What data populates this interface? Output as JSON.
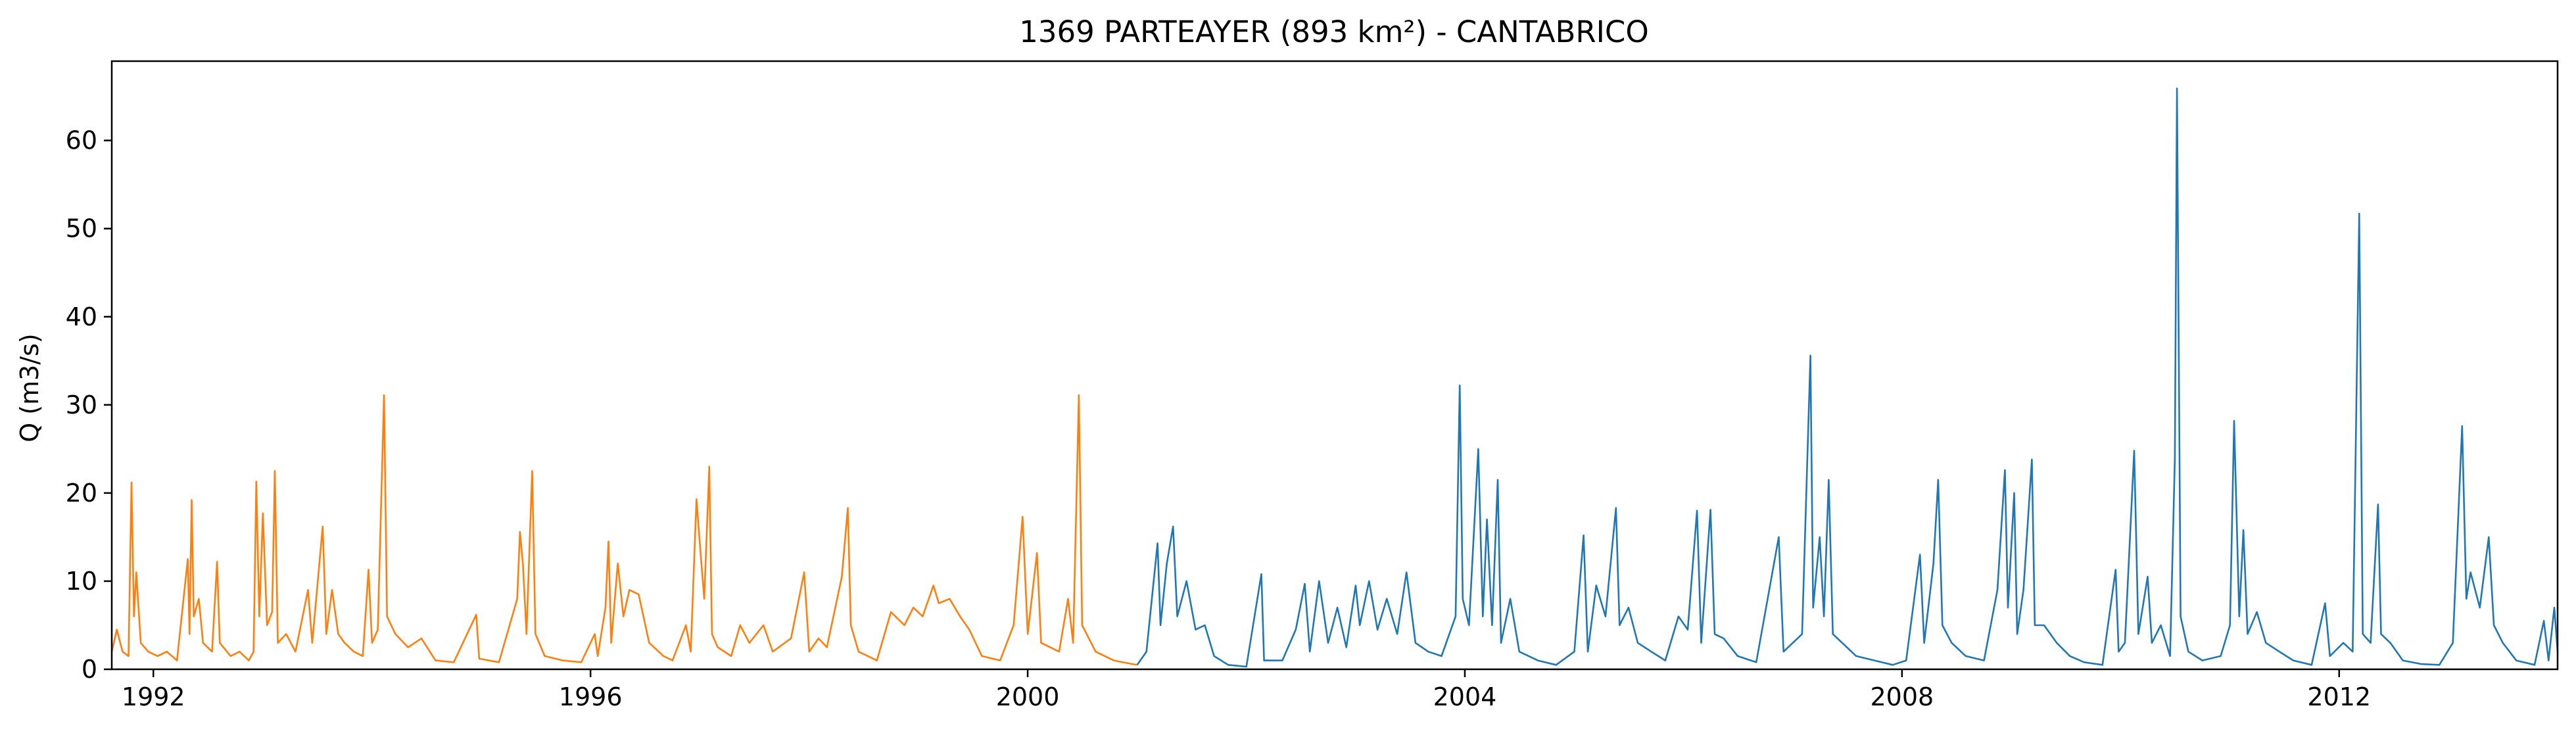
{
  "chart_data": {
    "type": "line",
    "title": "1369 PARTEAYER (893 km²) - CANTABRICO",
    "xlabel": "",
    "ylabel": "Q (m3/s)",
    "xlim": [
      "1991-08-15",
      "2013-12-31"
    ],
    "ylim": [
      0,
      69
    ],
    "x_ticks": [
      {
        "value": "1992-01-01",
        "label": "1992"
      },
      {
        "value": "1996-01-01",
        "label": "1996"
      },
      {
        "value": "2000-01-01",
        "label": "2000"
      },
      {
        "value": "2004-01-01",
        "label": "2004"
      },
      {
        "value": "2008-01-01",
        "label": "2008"
      },
      {
        "value": "2012-01-01",
        "label": "2012"
      }
    ],
    "y_ticks": [
      0,
      10,
      20,
      30,
      40,
      50,
      60
    ],
    "grid": false,
    "legend": "none",
    "series": [
      {
        "color": "#ff7f0e",
        "points": [
          [
            "1991-08-15",
            2.0
          ],
          [
            "1991-09-01",
            4.5
          ],
          [
            "1991-09-20",
            2.0
          ],
          [
            "1991-10-10",
            1.5
          ],
          [
            "1991-10-20",
            21.2
          ],
          [
            "1991-10-28",
            6.0
          ],
          [
            "1991-11-05",
            11.0
          ],
          [
            "1991-11-20",
            3.0
          ],
          [
            "1991-12-15",
            2.0
          ],
          [
            "1992-01-15",
            1.5
          ],
          [
            "1992-02-15",
            2.0
          ],
          [
            "1992-03-20",
            1.0
          ],
          [
            "1992-04-25",
            12.5
          ],
          [
            "1992-05-01",
            4.0
          ],
          [
            "1992-05-08",
            19.2
          ],
          [
            "1992-05-15",
            6.0
          ],
          [
            "1992-06-01",
            8.0
          ],
          [
            "1992-06-15",
            3.0
          ],
          [
            "1992-07-15",
            2.0
          ],
          [
            "1992-08-01",
            12.2
          ],
          [
            "1992-08-10",
            3.0
          ],
          [
            "1992-09-15",
            1.5
          ],
          [
            "1992-10-15",
            2.0
          ],
          [
            "1992-11-15",
            1.0
          ],
          [
            "1992-12-01",
            2.0
          ],
          [
            "1992-12-10",
            21.3
          ],
          [
            "1992-12-20",
            6.0
          ],
          [
            "1993-01-01",
            17.7
          ],
          [
            "1993-01-15",
            5.0
          ],
          [
            "1993-02-01",
            6.5
          ],
          [
            "1993-02-10",
            22.5
          ],
          [
            "1993-02-20",
            3.0
          ],
          [
            "1993-03-20",
            4.0
          ],
          [
            "1993-04-20",
            2.0
          ],
          [
            "1993-06-01",
            9.0
          ],
          [
            "1993-06-15",
            3.0
          ],
          [
            "1993-07-20",
            16.2
          ],
          [
            "1993-08-01",
            4.0
          ],
          [
            "1993-08-20",
            9.0
          ],
          [
            "1993-09-10",
            4.0
          ],
          [
            "1993-10-01",
            3.0
          ],
          [
            "1993-11-01",
            2.0
          ],
          [
            "1993-12-01",
            1.5
          ],
          [
            "1993-12-20",
            11.3
          ],
          [
            "1994-01-01",
            3.0
          ],
          [
            "1994-01-20",
            4.5
          ],
          [
            "1994-02-10",
            31.1
          ],
          [
            "1994-02-20",
            6.0
          ],
          [
            "1994-03-20",
            4.0
          ],
          [
            "1994-05-01",
            2.5
          ],
          [
            "1994-06-15",
            3.5
          ],
          [
            "1994-08-01",
            1.0
          ],
          [
            "1994-10-01",
            0.8
          ],
          [
            "1994-12-15",
            6.2
          ],
          [
            "1994-12-25",
            1.2
          ],
          [
            "1995-03-01",
            0.8
          ],
          [
            "1995-05-01",
            8.0
          ],
          [
            "1995-05-10",
            15.6
          ],
          [
            "1995-05-20",
            12.0
          ],
          [
            "1995-06-01",
            4.0
          ],
          [
            "1995-06-20",
            22.5
          ],
          [
            "1995-07-01",
            4.0
          ],
          [
            "1995-08-01",
            1.5
          ],
          [
            "1995-10-01",
            1.0
          ],
          [
            "1995-12-01",
            0.8
          ],
          [
            "1996-01-15",
            4.0
          ],
          [
            "1996-01-25",
            1.5
          ],
          [
            "1996-02-20",
            7.0
          ],
          [
            "1996-03-01",
            14.5
          ],
          [
            "1996-03-10",
            3.0
          ],
          [
            "1996-04-01",
            12.0
          ],
          [
            "1996-04-20",
            6.0
          ],
          [
            "1996-05-10",
            9.0
          ],
          [
            "1996-06-10",
            8.5
          ],
          [
            "1996-07-15",
            3.0
          ],
          [
            "1996-09-01",
            1.5
          ],
          [
            "1996-10-01",
            1.0
          ],
          [
            "1996-11-15",
            5.0
          ],
          [
            "1996-12-01",
            2.0
          ],
          [
            "1996-12-20",
            19.3
          ],
          [
            "1997-01-01",
            14.0
          ],
          [
            "1997-01-15",
            8.0
          ],
          [
            "1997-02-01",
            23.0
          ],
          [
            "1997-02-10",
            4.0
          ],
          [
            "1997-03-01",
            2.5
          ],
          [
            "1997-04-15",
            1.5
          ],
          [
            "1997-05-15",
            5.0
          ],
          [
            "1997-06-15",
            3.0
          ],
          [
            "1997-08-01",
            5.0
          ],
          [
            "1997-09-01",
            2.0
          ],
          [
            "1997-11-01",
            3.5
          ],
          [
            "1997-12-15",
            11.0
          ],
          [
            "1998-01-01",
            2.0
          ],
          [
            "1998-02-01",
            3.5
          ],
          [
            "1998-03-01",
            2.5
          ],
          [
            "1998-04-20",
            10.5
          ],
          [
            "1998-05-10",
            18.3
          ],
          [
            "1998-05-20",
            5.0
          ],
          [
            "1998-06-15",
            2.0
          ],
          [
            "1998-08-15",
            1.0
          ],
          [
            "1998-10-01",
            6.5
          ],
          [
            "1998-11-15",
            5.0
          ],
          [
            "1998-12-15",
            7.0
          ],
          [
            "1999-01-15",
            6.0
          ],
          [
            "1999-02-20",
            9.5
          ],
          [
            "1999-03-10",
            7.5
          ],
          [
            "1999-04-15",
            8.0
          ],
          [
            "1999-05-20",
            6.0
          ],
          [
            "1999-06-20",
            4.5
          ],
          [
            "1999-08-01",
            1.5
          ],
          [
            "1999-10-01",
            1.0
          ],
          [
            "1999-11-15",
            5.0
          ],
          [
            "1999-12-15",
            17.3
          ],
          [
            "2000-01-01",
            4.0
          ],
          [
            "2000-02-01",
            13.2
          ],
          [
            "2000-02-15",
            3.0
          ],
          [
            "2000-04-15",
            2.0
          ],
          [
            "2000-05-15",
            8.0
          ],
          [
            "2000-06-01",
            3.0
          ],
          [
            "2000-06-20",
            31.1
          ],
          [
            "2000-07-01",
            5.0
          ],
          [
            "2000-08-15",
            2.0
          ],
          [
            "2000-10-15",
            1.0
          ],
          [
            "2000-12-15",
            0.6
          ],
          [
            "2001-01-01",
            0.5
          ]
        ]
      },
      {
        "color": "#1f77b4",
        "points": [
          [
            "2001-01-01",
            0.5
          ],
          [
            "2001-02-01",
            2.0
          ],
          [
            "2001-03-10",
            14.3
          ],
          [
            "2001-03-20",
            5.0
          ],
          [
            "2001-04-10",
            12.0
          ],
          [
            "2001-05-01",
            16.2
          ],
          [
            "2001-05-15",
            6.0
          ],
          [
            "2001-06-15",
            10.0
          ],
          [
            "2001-07-15",
            4.5
          ],
          [
            "2001-08-15",
            5.0
          ],
          [
            "2001-09-15",
            1.5
          ],
          [
            "2001-11-01",
            0.5
          ],
          [
            "2002-01-01",
            0.3
          ],
          [
            "2002-02-20",
            10.8
          ],
          [
            "2002-03-01",
            1.0
          ],
          [
            "2002-05-01",
            1.0
          ],
          [
            "2002-06-15",
            4.5
          ],
          [
            "2002-07-15",
            9.7
          ],
          [
            "2002-08-01",
            2.0
          ],
          [
            "2002-09-01",
            10.0
          ],
          [
            "2002-10-01",
            3.0
          ],
          [
            "2002-11-01",
            7.0
          ],
          [
            "2002-12-01",
            2.5
          ],
          [
            "2003-01-01",
            9.5
          ],
          [
            "2003-01-15",
            5.0
          ],
          [
            "2003-02-15",
            10.0
          ],
          [
            "2003-03-15",
            4.5
          ],
          [
            "2003-04-15",
            8.0
          ],
          [
            "2003-05-20",
            4.0
          ],
          [
            "2003-06-20",
            11.0
          ],
          [
            "2003-07-20",
            3.0
          ],
          [
            "2003-09-01",
            2.0
          ],
          [
            "2003-10-15",
            1.5
          ],
          [
            "2003-12-01",
            6.0
          ],
          [
            "2003-12-15",
            32.2
          ],
          [
            "2003-12-25",
            8.0
          ],
          [
            "2004-01-15",
            5.0
          ],
          [
            "2004-02-15",
            25.0
          ],
          [
            "2004-03-01",
            6.0
          ],
          [
            "2004-03-15",
            17.0
          ],
          [
            "2004-04-01",
            5.0
          ],
          [
            "2004-04-20",
            21.5
          ],
          [
            "2004-05-01",
            3.0
          ],
          [
            "2004-06-01",
            8.0
          ],
          [
            "2004-07-01",
            2.0
          ],
          [
            "2004-09-01",
            1.0
          ],
          [
            "2004-11-01",
            0.5
          ],
          [
            "2005-01-01",
            2.0
          ],
          [
            "2005-02-01",
            15.2
          ],
          [
            "2005-02-15",
            2.0
          ],
          [
            "2005-03-15",
            9.5
          ],
          [
            "2005-04-15",
            6.0
          ],
          [
            "2005-05-20",
            18.3
          ],
          [
            "2005-06-01",
            5.0
          ],
          [
            "2005-07-01",
            7.0
          ],
          [
            "2005-08-01",
            3.0
          ],
          [
            "2005-09-15",
            2.0
          ],
          [
            "2005-11-01",
            1.0
          ],
          [
            "2005-12-15",
            6.0
          ],
          [
            "2006-01-15",
            4.5
          ],
          [
            "2006-02-15",
            18.0
          ],
          [
            "2006-03-01",
            3.0
          ],
          [
            "2006-04-01",
            18.1
          ],
          [
            "2006-04-15",
            4.0
          ],
          [
            "2006-05-15",
            3.5
          ],
          [
            "2006-07-01",
            1.5
          ],
          [
            "2006-09-01",
            0.8
          ],
          [
            "2006-11-15",
            15.0
          ],
          [
            "2006-12-01",
            2.0
          ],
          [
            "2007-01-01",
            3.0
          ],
          [
            "2007-02-01",
            4.0
          ],
          [
            "2007-03-01",
            35.6
          ],
          [
            "2007-03-10",
            7.0
          ],
          [
            "2007-04-01",
            15.0
          ],
          [
            "2007-04-15",
            6.0
          ],
          [
            "2007-05-01",
            21.5
          ],
          [
            "2007-05-15",
            4.0
          ],
          [
            "2007-06-15",
            3.0
          ],
          [
            "2007-08-01",
            1.5
          ],
          [
            "2007-10-01",
            1.0
          ],
          [
            "2007-12-01",
            0.5
          ],
          [
            "2008-01-15",
            1.0
          ],
          [
            "2008-03-01",
            13.0
          ],
          [
            "2008-03-15",
            3.0
          ],
          [
            "2008-04-15",
            12.0
          ],
          [
            "2008-05-01",
            21.5
          ],
          [
            "2008-05-15",
            5.0
          ],
          [
            "2008-06-15",
            3.0
          ],
          [
            "2008-08-01",
            1.5
          ],
          [
            "2008-10-01",
            1.0
          ],
          [
            "2008-11-15",
            9.0
          ],
          [
            "2008-12-10",
            22.6
          ],
          [
            "2008-12-20",
            7.0
          ],
          [
            "2009-01-10",
            20.0
          ],
          [
            "2009-01-20",
            4.0
          ],
          [
            "2009-02-10",
            9.0
          ],
          [
            "2009-03-10",
            23.8
          ],
          [
            "2009-03-20",
            5.0
          ],
          [
            "2009-04-20",
            5.0
          ],
          [
            "2009-06-01",
            3.0
          ],
          [
            "2009-07-15",
            1.5
          ],
          [
            "2009-09-01",
            0.8
          ],
          [
            "2009-11-01",
            0.5
          ],
          [
            "2009-12-15",
            11.3
          ],
          [
            "2009-12-25",
            2.0
          ],
          [
            "2010-01-15",
            3.0
          ],
          [
            "2010-02-15",
            24.8
          ],
          [
            "2010-03-01",
            4.0
          ],
          [
            "2010-04-01",
            10.5
          ],
          [
            "2010-04-15",
            3.0
          ],
          [
            "2010-05-15",
            5.0
          ],
          [
            "2010-06-15",
            1.5
          ],
          [
            "2010-07-01",
            24.0
          ],
          [
            "2010-07-08",
            65.9
          ],
          [
            "2010-07-20",
            6.0
          ],
          [
            "2010-08-15",
            2.0
          ],
          [
            "2010-10-01",
            1.0
          ],
          [
            "2010-12-01",
            1.5
          ],
          [
            "2011-01-01",
            5.0
          ],
          [
            "2011-01-15",
            28.2
          ],
          [
            "2011-02-01",
            6.0
          ],
          [
            "2011-02-15",
            15.8
          ],
          [
            "2011-03-01",
            4.0
          ],
          [
            "2011-04-01",
            6.5
          ],
          [
            "2011-05-01",
            3.0
          ],
          [
            "2011-06-15",
            2.0
          ],
          [
            "2011-08-01",
            1.0
          ],
          [
            "2011-10-01",
            0.5
          ],
          [
            "2011-11-15",
            7.5
          ],
          [
            "2011-12-01",
            1.5
          ],
          [
            "2012-01-15",
            3.0
          ],
          [
            "2012-02-15",
            2.0
          ],
          [
            "2012-03-08",
            51.7
          ],
          [
            "2012-03-20",
            4.0
          ],
          [
            "2012-04-15",
            3.0
          ],
          [
            "2012-05-10",
            18.7
          ],
          [
            "2012-05-20",
            4.0
          ],
          [
            "2012-06-20",
            3.0
          ],
          [
            "2012-08-01",
            1.0
          ],
          [
            "2012-10-01",
            0.6
          ],
          [
            "2012-12-01",
            0.5
          ],
          [
            "2013-01-15",
            3.0
          ],
          [
            "2013-02-15",
            27.6
          ],
          [
            "2013-03-01",
            8.0
          ],
          [
            "2013-03-15",
            11.0
          ],
          [
            "2013-04-15",
            7.0
          ],
          [
            "2013-05-15",
            15.0
          ],
          [
            "2013-06-01",
            5.0
          ],
          [
            "2013-07-01",
            3.0
          ],
          [
            "2013-08-15",
            1.0
          ],
          [
            "2013-10-15",
            0.5
          ],
          [
            "2013-11-15",
            5.5
          ],
          [
            "2013-12-01",
            1.0
          ],
          [
            "2013-12-20",
            7.0
          ],
          [
            "2013-12-31",
            2.0
          ]
        ]
      }
    ]
  }
}
